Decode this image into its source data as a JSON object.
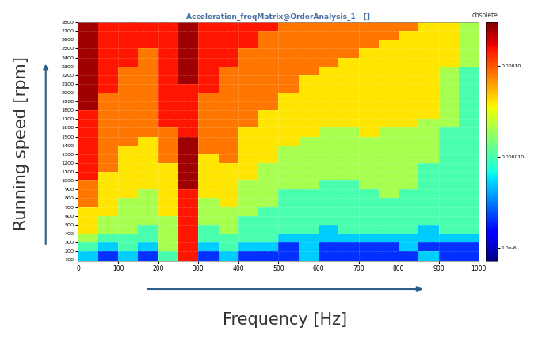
{
  "chart_data": {
    "type": "heatmap",
    "title": "Acceleration_freqMatrix@OrderAnalysis_1 - []",
    "subtitle": "obsolete",
    "x_label": "Frequency [Hz]",
    "y_label": "Running speed [rpm]",
    "xlim": [
      0,
      1000
    ],
    "ylim": [
      80,
      2800
    ],
    "xticks": [
      0,
      100,
      200,
      300,
      400,
      500,
      600,
      700,
      800,
      900,
      1000
    ],
    "yticks": [
      100,
      200,
      300,
      400,
      500,
      600,
      700,
      800,
      900,
      1000,
      1100,
      1200,
      1300,
      1400,
      1500,
      1600,
      1700,
      1800,
      1900,
      2000,
      2100,
      2200,
      2300,
      2400,
      2500,
      2600,
      2700,
      2800
    ],
    "grid": true,
    "color": "jet",
    "x_bins": [
      0,
      50,
      100,
      150,
      200,
      250,
      300,
      350,
      400,
      450,
      500,
      550,
      600,
      650,
      700,
      750,
      800,
      850,
      900,
      950,
      1000
    ],
    "y_bins": [
      80,
      200,
      300,
      400,
      500,
      600,
      700,
      800,
      900,
      1000,
      1100,
      1200,
      1300,
      1400,
      1500,
      1600,
      1700,
      1800,
      1900,
      2000,
      2100,
      2200,
      2300,
      2400,
      2500,
      2600,
      2700,
      2800
    ],
    "cells": [
      [
        5e-06,
        2e-06,
        5e-06,
        2e-06,
        1e-05,
        0.00015,
        2e-06,
        5e-06,
        2e-06,
        2e-06,
        2e-06,
        5e-06,
        2e-06,
        2e-06,
        2e-06,
        2e-06,
        2e-06,
        5e-06,
        2e-06,
        2e-06
      ],
      [
        1e-05,
        5e-06,
        1e-05,
        5e-06,
        2e-05,
        0.00015,
        5e-06,
        1e-05,
        5e-06,
        5e-06,
        2e-06,
        5e-06,
        2e-06,
        2e-06,
        2e-06,
        2e-06,
        5e-06,
        2e-06,
        2e-06,
        2e-06
      ],
      [
        2e-05,
        1e-05,
        1e-05,
        1e-05,
        2e-05,
        0.00015,
        1e-05,
        1e-05,
        1e-05,
        1e-05,
        5e-06,
        5e-06,
        5e-06,
        5e-06,
        5e-06,
        5e-06,
        5e-06,
        5e-06,
        5e-06,
        5e-06
      ],
      [
        4e-05,
        2e-05,
        2e-05,
        1e-05,
        2e-05,
        0.00015,
        1e-05,
        2e-05,
        1e-05,
        1e-05,
        1e-05,
        1e-05,
        5e-06,
        1e-05,
        1e-05,
        1e-05,
        1e-05,
        5e-06,
        1e-05,
        1e-05
      ],
      [
        4e-05,
        2e-05,
        2e-05,
        2e-05,
        2e-05,
        0.00015,
        2e-05,
        2e-05,
        1e-05,
        1e-05,
        1e-05,
        1e-05,
        1e-05,
        1e-05,
        1e-05,
        1e-05,
        1e-05,
        1e-05,
        1e-05,
        1e-05
      ],
      [
        4e-05,
        4e-05,
        2e-05,
        2e-05,
        4e-05,
        0.00015,
        2e-05,
        2e-05,
        2e-05,
        1e-05,
        1e-05,
        1e-05,
        1e-05,
        1e-05,
        1e-05,
        1e-05,
        1e-05,
        1e-05,
        1e-05,
        1e-05
      ],
      [
        8e-05,
        4e-05,
        2e-05,
        2e-05,
        4e-05,
        0.00015,
        2e-05,
        4e-05,
        2e-05,
        2e-05,
        1e-05,
        1e-05,
        1e-05,
        1e-05,
        1e-05,
        1e-05,
        1e-05,
        1e-05,
        1e-05,
        1e-05
      ],
      [
        8e-05,
        4e-05,
        4e-05,
        2e-05,
        4e-05,
        0.00015,
        4e-05,
        4e-05,
        2e-05,
        2e-05,
        1e-05,
        1e-05,
        1e-05,
        1e-05,
        1e-05,
        2e-05,
        1e-05,
        1e-05,
        1e-05,
        1e-05
      ],
      [
        8e-05,
        4e-05,
        4e-05,
        4e-05,
        4e-05,
        0.00025,
        4e-05,
        4e-05,
        2e-05,
        2e-05,
        2e-05,
        2e-05,
        1e-05,
        1e-05,
        2e-05,
        2e-05,
        2e-05,
        1e-05,
        1e-05,
        1e-05
      ],
      [
        0.00015,
        4e-05,
        4e-05,
        4e-05,
        4e-05,
        0.00025,
        4e-05,
        4e-05,
        4e-05,
        2e-05,
        2e-05,
        2e-05,
        2e-05,
        2e-05,
        2e-05,
        2e-05,
        2e-05,
        1e-05,
        1e-05,
        1e-05
      ],
      [
        0.00015,
        8e-05,
        4e-05,
        4e-05,
        4e-05,
        0.00025,
        4e-05,
        4e-05,
        4e-05,
        2e-05,
        2e-05,
        2e-05,
        2e-05,
        2e-05,
        2e-05,
        2e-05,
        2e-05,
        1e-05,
        1e-05,
        1e-05
      ],
      [
        0.00015,
        8e-05,
        4e-05,
        4e-05,
        8e-05,
        0.00025,
        4e-05,
        8e-05,
        4e-05,
        4e-05,
        2e-05,
        2e-05,
        2e-05,
        2e-05,
        2e-05,
        2e-05,
        2e-05,
        2e-05,
        1e-05,
        1e-05
      ],
      [
        0.00015,
        8e-05,
        4e-05,
        4e-05,
        8e-05,
        0.00025,
        8e-05,
        8e-05,
        4e-05,
        4e-05,
        2e-05,
        2e-05,
        2e-05,
        2e-05,
        2e-05,
        2e-05,
        2e-05,
        2e-05,
        1e-05,
        1e-05
      ],
      [
        0.00015,
        8e-05,
        8e-05,
        4e-05,
        8e-05,
        0.00025,
        8e-05,
        8e-05,
        4e-05,
        4e-05,
        4e-05,
        2e-05,
        2e-05,
        2e-05,
        2e-05,
        2e-05,
        2e-05,
        2e-05,
        1e-05,
        1e-05
      ],
      [
        0.00015,
        8e-05,
        8e-05,
        8e-05,
        8e-05,
        0.00015,
        8e-05,
        8e-05,
        4e-05,
        4e-05,
        4e-05,
        4e-05,
        2e-05,
        2e-05,
        4e-05,
        2e-05,
        2e-05,
        2e-05,
        1e-05,
        1e-05
      ],
      [
        0.00015,
        8e-05,
        8e-05,
        8e-05,
        0.00015,
        0.00015,
        8e-05,
        8e-05,
        8e-05,
        4e-05,
        4e-05,
        4e-05,
        4e-05,
        4e-05,
        4e-05,
        4e-05,
        4e-05,
        2e-05,
        2e-05,
        1e-05
      ],
      [
        0.00015,
        8e-05,
        8e-05,
        8e-05,
        0.00015,
        0.00015,
        8e-05,
        8e-05,
        8e-05,
        4e-05,
        4e-05,
        4e-05,
        4e-05,
        4e-05,
        4e-05,
        4e-05,
        4e-05,
        4e-05,
        2e-05,
        1e-05
      ],
      [
        0.00025,
        8e-05,
        8e-05,
        8e-05,
        0.00015,
        0.00015,
        8e-05,
        8e-05,
        8e-05,
        8e-05,
        4e-05,
        4e-05,
        4e-05,
        4e-05,
        4e-05,
        4e-05,
        4e-05,
        4e-05,
        2e-05,
        1e-05
      ],
      [
        0.00025,
        8e-05,
        8e-05,
        8e-05,
        0.00015,
        0.00015,
        8e-05,
        8e-05,
        8e-05,
        8e-05,
        4e-05,
        4e-05,
        4e-05,
        4e-05,
        4e-05,
        4e-05,
        4e-05,
        4e-05,
        2e-05,
        1e-05
      ],
      [
        0.00025,
        0.00015,
        8e-05,
        8e-05,
        0.00015,
        0.00015,
        0.00015,
        8e-05,
        8e-05,
        8e-05,
        8e-05,
        4e-05,
        4e-05,
        4e-05,
        4e-05,
        4e-05,
        4e-05,
        4e-05,
        2e-05,
        1e-05
      ],
      [
        0.00025,
        0.00015,
        8e-05,
        8e-05,
        0.00015,
        0.00025,
        0.00015,
        8e-05,
        8e-05,
        8e-05,
        8e-05,
        4e-05,
        4e-05,
        4e-05,
        4e-05,
        4e-05,
        4e-05,
        4e-05,
        2e-05,
        1e-05
      ],
      [
        0.00025,
        0.00015,
        8e-05,
        8e-05,
        0.00015,
        0.00025,
        0.00015,
        8e-05,
        8e-05,
        8e-05,
        8e-05,
        8e-05,
        4e-05,
        4e-05,
        4e-05,
        4e-05,
        4e-05,
        4e-05,
        2e-05,
        1e-05
      ],
      [
        0.00025,
        0.00015,
        0.00015,
        8e-05,
        0.00015,
        0.00025,
        0.00015,
        0.00015,
        8e-05,
        8e-05,
        8e-05,
        8e-05,
        8e-05,
        4e-05,
        4e-05,
        4e-05,
        4e-05,
        4e-05,
        4e-05,
        2e-05
      ],
      [
        0.00025,
        0.00015,
        0.00015,
        8e-05,
        0.00015,
        0.00025,
        0.00015,
        0.00015,
        8e-05,
        8e-05,
        8e-05,
        8e-05,
        8e-05,
        8e-05,
        4e-05,
        4e-05,
        4e-05,
        4e-05,
        4e-05,
        2e-05
      ],
      [
        0.00025,
        0.00015,
        0.00015,
        0.00015,
        0.00015,
        0.00025,
        0.00015,
        0.00015,
        0.00015,
        8e-05,
        8e-05,
        8e-05,
        8e-05,
        8e-05,
        8e-05,
        4e-05,
        4e-05,
        4e-05,
        4e-05,
        2e-05
      ],
      [
        0.00025,
        0.00015,
        0.00015,
        0.00015,
        0.00015,
        0.00025,
        0.00015,
        0.00015,
        0.00015,
        8e-05,
        8e-05,
        8e-05,
        8e-05,
        8e-05,
        8e-05,
        8e-05,
        4e-05,
        4e-05,
        4e-05,
        2e-05
      ],
      [
        0.00025,
        0.00015,
        0.00015,
        0.00015,
        0.00015,
        0.00025,
        0.00015,
        0.00015,
        0.00015,
        0.00015,
        8e-05,
        8e-05,
        8e-05,
        8e-05,
        8e-05,
        8e-05,
        8e-05,
        4e-05,
        4e-05,
        2e-05
      ]
    ],
    "colorbar_range": [
      7e-07,
      0.0003
    ],
    "colorbar_ticks": [
      {
        "value": 1e-06,
        "label": "1.0e-6"
      },
      {
        "value": 1e-05,
        "label": "0.000010"
      },
      {
        "value": 0.0001,
        "label": "0.00010"
      }
    ]
  }
}
